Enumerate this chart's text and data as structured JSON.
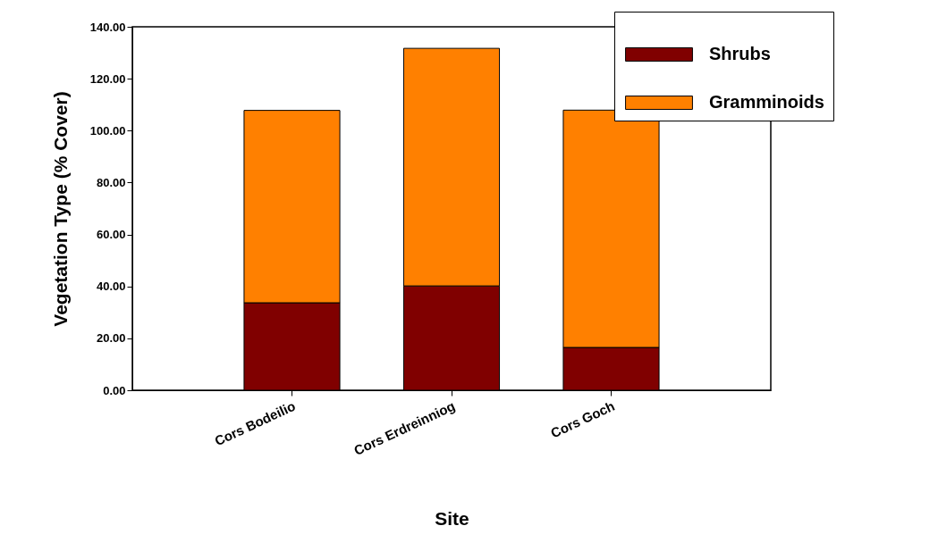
{
  "chart_data": {
    "type": "bar",
    "stacked": true,
    "xlabel": "Site",
    "ylabel": "Vegetation Type (% Cover)",
    "categories": [
      "Cors Bodeilio",
      "Cors Erdreinniog",
      "Cors Goch"
    ],
    "series": [
      {
        "name": "Shrubs",
        "color": "#800000",
        "values": [
          33.7,
          40.2,
          16.5
        ]
      },
      {
        "name": "Gramminoids",
        "color": "#ff8000",
        "values": [
          74.1,
          91.5,
          91.4
        ]
      }
    ],
    "ylim": [
      0,
      140
    ],
    "yticks": [
      {
        "value": 0,
        "label": "0.00"
      },
      {
        "value": 20,
        "label": "20.00"
      },
      {
        "value": 40,
        "label": "40.00"
      },
      {
        "value": 60,
        "label": "60.00"
      },
      {
        "value": 80,
        "label": "80.00"
      },
      {
        "value": 100,
        "label": "100.00"
      },
      {
        "value": 120,
        "label": "120.00"
      },
      {
        "value": 140,
        "label": "140.00"
      }
    ],
    "grid": false,
    "legend": "top right"
  }
}
